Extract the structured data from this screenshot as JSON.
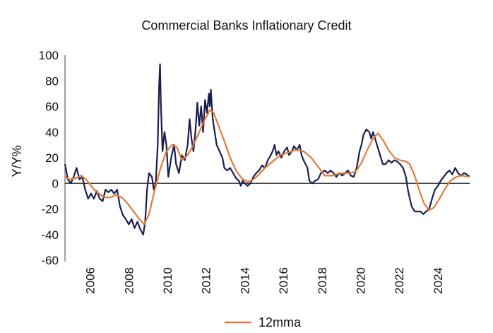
{
  "chart_data": {
    "type": "line",
    "title": "Commercial Banks Inflationary Credit",
    "ylabel": "Y/Y%",
    "xlabel": "",
    "ylim": [
      -60,
      100
    ],
    "yticks": [
      -60,
      -40,
      -20,
      0,
      20,
      40,
      60,
      80,
      100
    ],
    "xlim": [
      2004.75,
      2025.7
    ],
    "xticks": [
      2006,
      2008,
      2010,
      2012,
      2014,
      2016,
      2018,
      2020,
      2022,
      2024
    ],
    "grid": false,
    "zero_line": true,
    "legend": {
      "position": "bottom-center"
    },
    "series": [
      {
        "color": "#1a1f4f",
        "points": [
          [
            2004.75,
            15
          ],
          [
            2004.9,
            3
          ],
          [
            2005.05,
            0
          ],
          [
            2005.2,
            5
          ],
          [
            2005.35,
            12
          ],
          [
            2005.5,
            3
          ],
          [
            2005.65,
            5
          ],
          [
            2005.8,
            -5
          ],
          [
            2005.95,
            -12
          ],
          [
            2006.1,
            -8
          ],
          [
            2006.25,
            -12
          ],
          [
            2006.4,
            -6
          ],
          [
            2006.55,
            -12
          ],
          [
            2006.7,
            -14
          ],
          [
            2006.85,
            -5
          ],
          [
            2007.0,
            -7
          ],
          [
            2007.15,
            -5
          ],
          [
            2007.3,
            -8
          ],
          [
            2007.45,
            -5
          ],
          [
            2007.6,
            -18
          ],
          [
            2007.75,
            -25
          ],
          [
            2007.9,
            -28
          ],
          [
            2008.05,
            -32
          ],
          [
            2008.2,
            -28
          ],
          [
            2008.35,
            -35
          ],
          [
            2008.5,
            -30
          ],
          [
            2008.65,
            -36
          ],
          [
            2008.8,
            -40
          ],
          [
            2008.9,
            -30
          ],
          [
            2009.0,
            -5
          ],
          [
            2009.1,
            8
          ],
          [
            2009.25,
            5
          ],
          [
            2009.35,
            -5
          ],
          [
            2009.45,
            0
          ],
          [
            2009.55,
            30
          ],
          [
            2009.62,
            75
          ],
          [
            2009.67,
            93
          ],
          [
            2009.72,
            60
          ],
          [
            2009.8,
            25
          ],
          [
            2009.9,
            40
          ],
          [
            2010.0,
            30
          ],
          [
            2010.1,
            5
          ],
          [
            2010.25,
            20
          ],
          [
            2010.4,
            30
          ],
          [
            2010.5,
            15
          ],
          [
            2010.65,
            8
          ],
          [
            2010.8,
            22
          ],
          [
            2010.95,
            18
          ],
          [
            2011.1,
            30
          ],
          [
            2011.2,
            50
          ],
          [
            2011.3,
            35
          ],
          [
            2011.4,
            25
          ],
          [
            2011.5,
            40
          ],
          [
            2011.6,
            63
          ],
          [
            2011.7,
            45
          ],
          [
            2011.8,
            60
          ],
          [
            2011.9,
            40
          ],
          [
            2012.0,
            65
          ],
          [
            2012.1,
            55
          ],
          [
            2012.2,
            70
          ],
          [
            2012.25,
            60
          ],
          [
            2012.3,
            73
          ],
          [
            2012.4,
            50
          ],
          [
            2012.5,
            40
          ],
          [
            2012.6,
            30
          ],
          [
            2012.75,
            25
          ],
          [
            2012.9,
            20
          ],
          [
            2013.0,
            12
          ],
          [
            2013.15,
            10
          ],
          [
            2013.3,
            12
          ],
          [
            2013.45,
            8
          ],
          [
            2013.6,
            4
          ],
          [
            2013.75,
            2
          ],
          [
            2013.85,
            -2
          ],
          [
            2013.95,
            2
          ],
          [
            2014.05,
            0
          ],
          [
            2014.2,
            -2
          ],
          [
            2014.35,
            0
          ],
          [
            2014.5,
            5
          ],
          [
            2014.65,
            8
          ],
          [
            2014.8,
            10
          ],
          [
            2014.95,
            14
          ],
          [
            2015.1,
            12
          ],
          [
            2015.25,
            18
          ],
          [
            2015.4,
            22
          ],
          [
            2015.5,
            25
          ],
          [
            2015.6,
            30
          ],
          [
            2015.7,
            22
          ],
          [
            2015.8,
            25
          ],
          [
            2015.95,
            20
          ],
          [
            2016.1,
            25
          ],
          [
            2016.25,
            28
          ],
          [
            2016.35,
            22
          ],
          [
            2016.5,
            25
          ],
          [
            2016.6,
            29
          ],
          [
            2016.75,
            26
          ],
          [
            2016.9,
            30
          ],
          [
            2017.0,
            22
          ],
          [
            2017.1,
            18
          ],
          [
            2017.3,
            12
          ],
          [
            2017.4,
            2
          ],
          [
            2017.55,
            0
          ],
          [
            2017.7,
            2
          ],
          [
            2017.85,
            3
          ],
          [
            2018.0,
            8
          ],
          [
            2018.2,
            10
          ],
          [
            2018.35,
            8
          ],
          [
            2018.5,
            10
          ],
          [
            2018.65,
            8
          ],
          [
            2018.8,
            5
          ],
          [
            2018.95,
            8
          ],
          [
            2019.1,
            6
          ],
          [
            2019.25,
            8
          ],
          [
            2019.4,
            10
          ],
          [
            2019.55,
            6
          ],
          [
            2019.7,
            5
          ],
          [
            2019.85,
            12
          ],
          [
            2020.0,
            25
          ],
          [
            2020.1,
            30
          ],
          [
            2020.2,
            38
          ],
          [
            2020.35,
            42
          ],
          [
            2020.5,
            40
          ],
          [
            2020.6,
            35
          ],
          [
            2020.7,
            40
          ],
          [
            2020.8,
            35
          ],
          [
            2020.9,
            30
          ],
          [
            2021.0,
            25
          ],
          [
            2021.1,
            20
          ],
          [
            2021.2,
            15
          ],
          [
            2021.35,
            15
          ],
          [
            2021.5,
            18
          ],
          [
            2021.65,
            16
          ],
          [
            2021.8,
            18
          ],
          [
            2021.95,
            17
          ],
          [
            2022.1,
            15
          ],
          [
            2022.25,
            12
          ],
          [
            2022.4,
            5
          ],
          [
            2022.5,
            -5
          ],
          [
            2022.6,
            -12
          ],
          [
            2022.7,
            -18
          ],
          [
            2022.85,
            -22
          ],
          [
            2023.0,
            -22
          ],
          [
            2023.15,
            -22
          ],
          [
            2023.3,
            -24
          ],
          [
            2023.45,
            -22
          ],
          [
            2023.6,
            -20
          ],
          [
            2023.75,
            -12
          ],
          [
            2023.9,
            -5
          ],
          [
            2024.05,
            -2
          ],
          [
            2024.2,
            2
          ],
          [
            2024.35,
            5
          ],
          [
            2024.5,
            8
          ],
          [
            2024.65,
            10
          ],
          [
            2024.8,
            7
          ],
          [
            2024.95,
            12
          ],
          [
            2025.1,
            8
          ],
          [
            2025.25,
            6
          ],
          [
            2025.4,
            8
          ],
          [
            2025.55,
            7
          ],
          [
            2025.7,
            5
          ]
        ]
      },
      {
        "name": "12mma",
        "color": "#e07b39",
        "points": [
          [
            2004.75,
            5
          ],
          [
            2005.0,
            3
          ],
          [
            2005.3,
            4
          ],
          [
            2005.6,
            6
          ],
          [
            2005.9,
            2
          ],
          [
            2006.2,
            -4
          ],
          [
            2006.5,
            -8
          ],
          [
            2006.8,
            -11
          ],
          [
            2007.1,
            -11
          ],
          [
            2007.4,
            -9
          ],
          [
            2007.7,
            -11
          ],
          [
            2008.0,
            -16
          ],
          [
            2008.3,
            -22
          ],
          [
            2008.6,
            -28
          ],
          [
            2008.85,
            -32
          ],
          [
            2009.1,
            -24
          ],
          [
            2009.4,
            -5
          ],
          [
            2009.7,
            12
          ],
          [
            2010.0,
            25
          ],
          [
            2010.3,
            30
          ],
          [
            2010.55,
            28
          ],
          [
            2010.8,
            18
          ],
          [
            2011.1,
            22
          ],
          [
            2011.4,
            30
          ],
          [
            2011.7,
            40
          ],
          [
            2012.0,
            50
          ],
          [
            2012.25,
            57
          ],
          [
            2012.45,
            55
          ],
          [
            2012.7,
            45
          ],
          [
            2013.0,
            33
          ],
          [
            2013.3,
            20
          ],
          [
            2013.6,
            10
          ],
          [
            2013.9,
            4
          ],
          [
            2014.2,
            1
          ],
          [
            2014.5,
            3
          ],
          [
            2014.8,
            7
          ],
          [
            2015.1,
            12
          ],
          [
            2015.5,
            17
          ],
          [
            2015.9,
            22
          ],
          [
            2016.3,
            24
          ],
          [
            2016.7,
            26
          ],
          [
            2017.1,
            25
          ],
          [
            2017.5,
            20
          ],
          [
            2017.85,
            13
          ],
          [
            2018.2,
            6
          ],
          [
            2018.6,
            6
          ],
          [
            2019.0,
            8
          ],
          [
            2019.4,
            8
          ],
          [
            2019.8,
            9
          ],
          [
            2020.1,
            16
          ],
          [
            2020.4,
            26
          ],
          [
            2020.7,
            35
          ],
          [
            2020.95,
            39
          ],
          [
            2021.2,
            34
          ],
          [
            2021.5,
            26
          ],
          [
            2021.8,
            20
          ],
          [
            2022.1,
            18
          ],
          [
            2022.4,
            17
          ],
          [
            2022.6,
            15
          ],
          [
            2022.85,
            6
          ],
          [
            2023.1,
            -6
          ],
          [
            2023.35,
            -16
          ],
          [
            2023.6,
            -21
          ],
          [
            2023.85,
            -19
          ],
          [
            2024.1,
            -13
          ],
          [
            2024.4,
            -5
          ],
          [
            2024.7,
            2
          ],
          [
            2025.0,
            5
          ],
          [
            2025.3,
            6
          ],
          [
            2025.7,
            5
          ]
        ]
      }
    ]
  }
}
